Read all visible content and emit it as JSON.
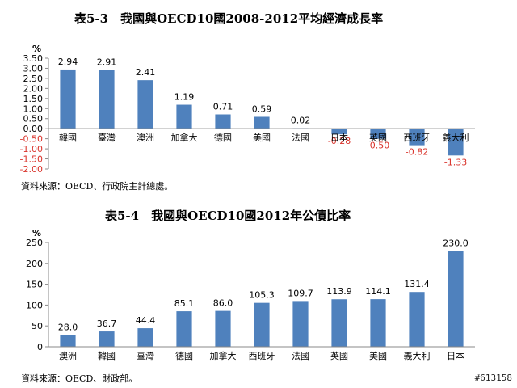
{
  "page": {
    "title1": "表5-3　我國與OECD10國2008-2012平均經濟成長率",
    "title2": "表5-4　我國與OECD10國2012年公債比率",
    "source1": "資料來源：OECD、行政院主計總處。",
    "source2": "資料來源：OECD、財政部。",
    "watermark": "#613158"
  },
  "chart_data": [
    {
      "type": "bar",
      "title": "表5-3　我國與OECD10國2008-2012平均經濟成長率",
      "ylabel": "%",
      "categories": [
        "韓國",
        "臺灣",
        "澳洲",
        "加拿大",
        "德國",
        "美國",
        "法國",
        "日本",
        "英國",
        "西班牙",
        "義大利"
      ],
      "values": [
        2.94,
        2.91,
        2.41,
        1.19,
        0.71,
        0.59,
        0.02,
        -0.28,
        -0.5,
        -0.82,
        -1.33
      ],
      "value_labels": [
        "2.94",
        "2.91",
        "2.41",
        "1.19",
        "0.71",
        "0.59",
        "0.02",
        "-0.28",
        "-0.50",
        "-0.82",
        "-1.33"
      ],
      "ylim": [
        -2.0,
        3.5
      ],
      "yticks": [
        "3.50",
        "3.00",
        "2.50",
        "2.00",
        "1.50",
        "1.00",
        "0.50",
        "0.00",
        "-0.50",
        "-1.00",
        "-1.50",
        "-2.00"
      ],
      "ytick_values": [
        3.5,
        3.0,
        2.5,
        2.0,
        1.5,
        1.0,
        0.5,
        0.0,
        -0.5,
        -1.0,
        -1.5,
        -2.0
      ],
      "bar_color": "#4f81bd",
      "negative_label_color": "#d9332b",
      "grid": false,
      "legend": "none"
    },
    {
      "type": "bar",
      "title": "表5-4　我國與OECD10國2012年公債比率",
      "ylabel": "%",
      "categories": [
        "澳洲",
        "韓國",
        "臺灣",
        "德國",
        "加拿大",
        "西班牙",
        "法國",
        "英國",
        "美國",
        "義大利",
        "日本"
      ],
      "values": [
        28.0,
        36.7,
        44.4,
        85.1,
        86.0,
        105.3,
        109.7,
        113.9,
        114.1,
        131.4,
        230.0
      ],
      "value_labels": [
        "28.0",
        "36.7",
        "44.4",
        "85.1",
        "86.0",
        "105.3",
        "109.7",
        "113.9",
        "114.1",
        "131.4",
        "230.0"
      ],
      "ylim": [
        0,
        250
      ],
      "yticks": [
        "250",
        "200",
        "150",
        "100",
        "50",
        "0"
      ],
      "ytick_values": [
        250,
        200,
        150,
        100,
        50,
        0
      ],
      "bar_color": "#4f81bd",
      "grid": false,
      "legend": "none"
    }
  ]
}
